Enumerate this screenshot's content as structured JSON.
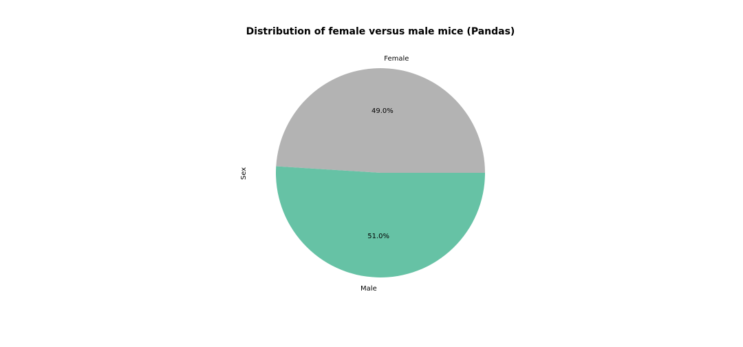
{
  "chart_data": {
    "type": "pie",
    "title": "Distribution of female versus male mice (Pandas)",
    "ylabel": "Sex",
    "xlabel": "",
    "categories": [
      "Female",
      "Male"
    ],
    "values": [
      49.0,
      51.0
    ],
    "percent_labels": [
      "49.0%",
      "51.0%"
    ],
    "colors": [
      "#b3b3b3",
      "#66c2a5"
    ],
    "legend": "none",
    "grid": false
  }
}
